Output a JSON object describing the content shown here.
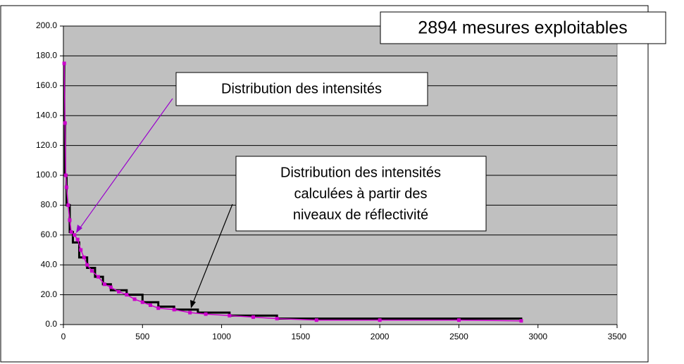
{
  "chart_data": {
    "type": "line",
    "xlim": [
      0,
      3500
    ],
    "xticks": [
      0,
      500,
      1000,
      1500,
      2000,
      2500,
      3000,
      3500
    ],
    "ylim": [
      0,
      200
    ],
    "yticks": [
      {
        "value": 0,
        "label": "0.0"
      },
      {
        "value": 20,
        "label": "20.0"
      },
      {
        "value": 40,
        "label": "40.0"
      },
      {
        "value": 60,
        "label": "60.0"
      },
      {
        "value": 80,
        "label": "80.0"
      },
      {
        "value": 100,
        "label": "100.0"
      },
      {
        "value": 120,
        "label": "120.0"
      },
      {
        "value": 140,
        "label": "140.0"
      },
      {
        "value": 160,
        "label": "160.0"
      },
      {
        "value": 180,
        "label": "180.0"
      },
      {
        "value": 200,
        "label": "200.0"
      }
    ],
    "grid": true,
    "series": [
      {
        "color": "#000000",
        "step": true,
        "x": [
          0,
          5,
          10,
          20,
          40,
          60,
          100,
          150,
          200,
          250,
          300,
          400,
          500,
          600,
          700,
          850,
          1050,
          1350,
          2894
        ],
        "values": [
          175,
          135,
          100,
          80,
          62,
          55,
          45,
          38,
          32,
          27,
          23,
          20,
          15,
          12,
          10,
          8,
          6,
          4,
          2.5
        ]
      },
      {
        "color": "#cc00cc",
        "markers": true,
        "x": [
          5,
          10,
          15,
          20,
          30,
          40,
          50,
          70,
          90,
          110,
          130,
          150,
          180,
          220,
          260,
          300,
          350,
          400,
          450,
          500,
          550,
          600,
          700,
          800,
          900,
          1050,
          1200,
          1350,
          1600,
          2000,
          2500,
          2894
        ],
        "values": [
          175,
          135,
          100,
          92,
          80,
          70,
          62,
          60,
          57,
          50,
          45,
          40,
          36,
          32,
          27,
          25,
          22,
          20,
          17,
          15,
          13,
          11,
          10,
          8,
          7,
          6,
          5,
          4,
          3,
          3,
          3,
          2.5
        ]
      }
    ],
    "annotations": [
      {
        "text": "2894 mesures exploitables"
      },
      {
        "text": "Distribution des intensités"
      },
      {
        "lines": [
          "Distribution des intensités",
          "calculées à partir des",
          "niveaux de réflectivité"
        ]
      }
    ]
  }
}
